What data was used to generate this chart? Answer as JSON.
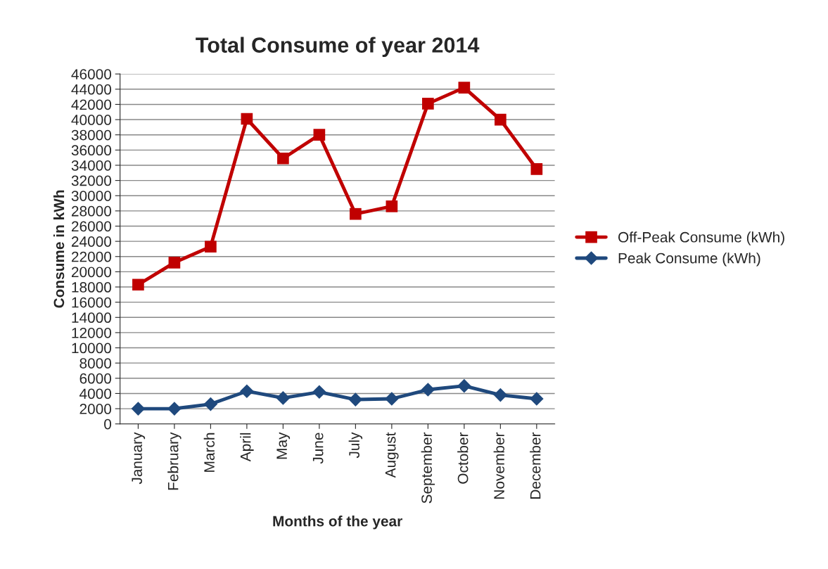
{
  "chart_data": {
    "type": "line",
    "title": "Total Consume of year 2014",
    "xlabel": "Months of the year",
    "ylabel": "Consume in kWh",
    "categories": [
      "January",
      "February",
      "March",
      "April",
      "May",
      "June",
      "July",
      "August",
      "September",
      "October",
      "November",
      "December"
    ],
    "series": [
      {
        "name": "Off-Peak Consume (kWh)",
        "color": "#c00000",
        "marker": "square",
        "values": [
          18300,
          21200,
          23300,
          40100,
          34900,
          38000,
          27600,
          28600,
          42100,
          44200,
          40000,
          33500
        ]
      },
      {
        "name": "Peak Consume (kWh)",
        "color": "#1f497d",
        "marker": "diamond",
        "values": [
          2000,
          2000,
          2600,
          4300,
          3400,
          4200,
          3200,
          3300,
          4500,
          5000,
          3800,
          3300
        ]
      }
    ],
    "ylim": [
      0,
      46000
    ],
    "yticks": [
      0,
      2000,
      4000,
      6000,
      8000,
      10000,
      12000,
      14000,
      16000,
      18000,
      20000,
      22000,
      24000,
      26000,
      28000,
      30000,
      32000,
      34000,
      36000,
      38000,
      40000,
      42000,
      44000,
      46000
    ],
    "grid": "y",
    "legend": "right",
    "line_style": "solid"
  }
}
